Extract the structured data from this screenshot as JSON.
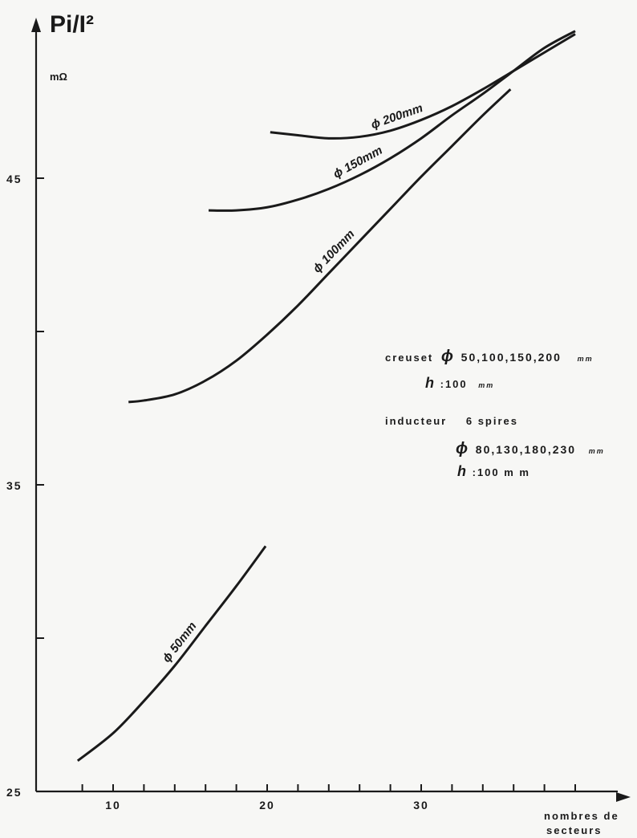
{
  "chart_data": {
    "type": "line",
    "title": "",
    "ylabel": "Pi/I²",
    "yunit": "mΩ",
    "xlabel": [
      "nombres de",
      "secteurs"
    ],
    "xlim": [
      5,
      40
    ],
    "ylim": [
      25,
      50
    ],
    "xticks_labeled": [
      10,
      20,
      30
    ],
    "yticks_labeled": [
      25,
      35,
      45
    ],
    "xtick_step": 2,
    "ytick_step": 5,
    "grid": false,
    "series": [
      {
        "name": "ϕ 200mm",
        "x": [
          20.2,
          22,
          24,
          26,
          28,
          30,
          32,
          34,
          36,
          38,
          40
        ],
        "y": [
          46.5,
          46.4,
          46.3,
          46.35,
          46.55,
          46.9,
          47.35,
          47.9,
          48.5,
          49.1,
          49.7
        ]
      },
      {
        "name": "ϕ 150mm",
        "x": [
          16.2,
          18,
          20,
          22,
          24,
          26,
          28,
          30,
          32,
          34,
          36,
          38,
          40
        ],
        "y": [
          43.95,
          43.95,
          44.05,
          44.3,
          44.65,
          45.1,
          45.65,
          46.3,
          47.05,
          47.75,
          48.5,
          49.25,
          49.8
        ]
      },
      {
        "name": "ϕ 100mm",
        "x": [
          11,
          12,
          14,
          16,
          18,
          20,
          22,
          24,
          26,
          28,
          30,
          32,
          34,
          35.8
        ],
        "y": [
          37.7,
          37.75,
          37.95,
          38.4,
          39.05,
          39.9,
          40.85,
          41.9,
          42.95,
          44.0,
          45.05,
          46.05,
          47.05,
          47.9
        ]
      },
      {
        "name": "ϕ 50mm",
        "x": [
          7.7,
          10,
          12,
          14,
          16,
          18,
          19.9
        ],
        "y": [
          26.0,
          26.9,
          27.95,
          29.1,
          30.4,
          31.7,
          33.0
        ]
      }
    ],
    "annotation": {
      "line1_word": "creuset",
      "line1_sym": "ϕ",
      "line1_vals": "50,100,150,200",
      "line1_unit": "mm",
      "line2_sym": "h",
      "line2_vals": ":100",
      "line2_unit": "mm",
      "line3_word": "inducteur",
      "line3_vals": "6 spires",
      "line4_sym": "ϕ",
      "line4_vals": "80,130,180,230",
      "line4_unit": "mm",
      "line5_sym": "h",
      "line5_vals": ":100 m m"
    }
  }
}
